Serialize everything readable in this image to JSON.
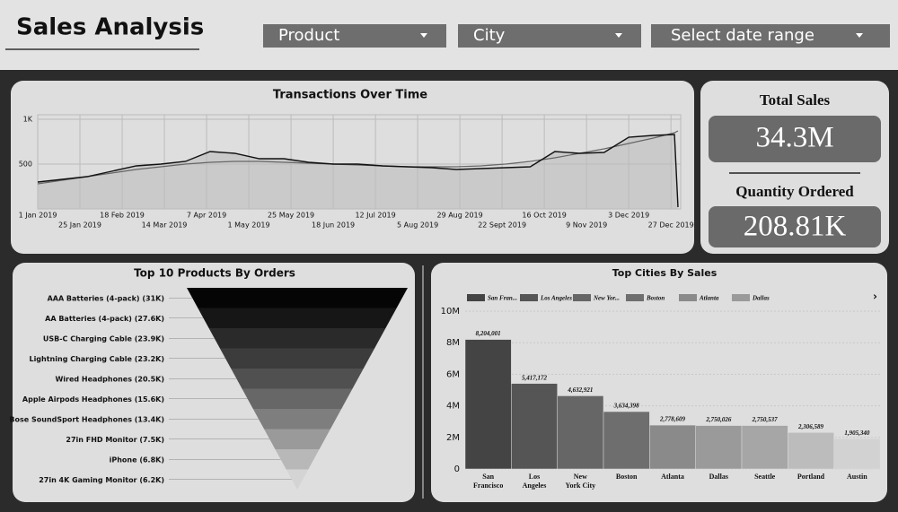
{
  "header": {
    "title": "Sales Analysis",
    "filters": [
      "Product",
      "City",
      "Select date range"
    ]
  },
  "kpis": [
    {
      "label": "Total Sales",
      "value": "34.3M"
    },
    {
      "label": "Quantity Ordered",
      "value": "208.81K"
    }
  ],
  "chart_data": [
    {
      "type": "line",
      "title": "Transactions Over Time",
      "color": "#111111",
      "trend_color": "#666666",
      "grid": true,
      "x": [
        "2019-01-01",
        "2019-01-15",
        "2019-01-29",
        "2019-02-12",
        "2019-02-26",
        "2019-03-12",
        "2019-03-26",
        "2019-04-09",
        "2019-04-23",
        "2019-05-07",
        "2019-05-21",
        "2019-06-04",
        "2019-06-18",
        "2019-07-02",
        "2019-07-16",
        "2019-07-30",
        "2019-08-13",
        "2019-08-27",
        "2019-09-10",
        "2019-09-24",
        "2019-10-08",
        "2019-10-22",
        "2019-11-05",
        "2019-11-19",
        "2019-12-03",
        "2019-12-17",
        "2019-12-29",
        "2019-12-31"
      ],
      "values": [
        300,
        330,
        360,
        420,
        480,
        500,
        530,
        640,
        620,
        560,
        560,
        520,
        500,
        500,
        480,
        470,
        460,
        440,
        450,
        460,
        470,
        640,
        620,
        630,
        800,
        820,
        830,
        20
      ],
      "trend_values": [
        280,
        320,
        360,
        400,
        440,
        470,
        500,
        520,
        530,
        530,
        520,
        510,
        500,
        490,
        480,
        470,
        470,
        470,
        480,
        500,
        530,
        570,
        620,
        670,
        730,
        790,
        850,
        870
      ],
      "xlim": [
        "2019-01-01",
        "2019-12-31"
      ],
      "xticks": [
        {
          "value": "2019-01-01",
          "label": "1 Jan 2019"
        },
        {
          "value": "2019-01-25",
          "label": "25 Jan 2019"
        },
        {
          "value": "2019-02-18",
          "label": "18 Feb 2019"
        },
        {
          "value": "2019-03-14",
          "label": "14 Mar 2019"
        },
        {
          "value": "2019-04-07",
          "label": "7 Apr 2019"
        },
        {
          "value": "2019-05-01",
          "label": "1 May 2019"
        },
        {
          "value": "2019-05-25",
          "label": "25 May 2019"
        },
        {
          "value": "2019-06-18",
          "label": "18 Jun 2019"
        },
        {
          "value": "2019-07-12",
          "label": "12 Jul 2019"
        },
        {
          "value": "2019-08-05",
          "label": "5 Aug 2019"
        },
        {
          "value": "2019-08-29",
          "label": "29 Aug 2019"
        },
        {
          "value": "2019-09-22",
          "label": "22 Sept 2019"
        },
        {
          "value": "2019-10-16",
          "label": "16 Oct 2019"
        },
        {
          "value": "2019-11-09",
          "label": "9 Nov 2019"
        },
        {
          "value": "2019-12-03",
          "label": "3 Dec 2019"
        },
        {
          "value": "2019-12-27",
          "label": "27 Dec 2019"
        }
      ],
      "ylim": [
        0,
        1000
      ],
      "yticks": [
        500,
        {
          "value": 1000,
          "label": "1K"
        }
      ]
    },
    {
      "type": "funnel",
      "title": "Top 10 Products By Orders",
      "categories": [
        "AAA Batteries (4-pack)",
        "AA Batteries (4-pack)",
        "USB-C Charging Cable",
        "Lightning Charging Cable",
        "Wired Headphones",
        "Apple Airpods Headphones",
        "Bose SoundSport Headphones",
        "27in FHD Monitor",
        "iPhone",
        "27in 4K Gaming Monitor"
      ],
      "values": [
        31000,
        27600,
        23900,
        23200,
        20500,
        15600,
        13400,
        7500,
        6800,
        6200
      ],
      "value_labels": [
        "(31K)",
        "(27.6K)",
        "(23.9K)",
        "(23.2K)",
        "(20.5K)",
        "(15.6K)",
        "(13.4K)",
        "(7.5K)",
        "(6.8K)",
        "(6.2K)"
      ],
      "colors": [
        "#050505",
        "#161616",
        "#2a2a2a",
        "#3c3c3c",
        "#505050",
        "#676767",
        "#7e7e7e",
        "#9a9a9a",
        "#b8b8b8",
        "#d4d4d4"
      ]
    },
    {
      "type": "bar",
      "title": "Top Cities By Sales",
      "categories": [
        "San Francisco",
        "Los Angeles",
        "New York City",
        "Boston",
        "Atlanta",
        "Dallas",
        "Seattle",
        "Portland",
        "Austin"
      ],
      "values": [
        8204001,
        5417172,
        4632921,
        3634398,
        2778609,
        2750026,
        2750537,
        2306589,
        1905340
      ],
      "value_labels": [
        "8,204,001",
        "5,417,172",
        "4,632,921",
        "3,634,398",
        "2,778,609",
        "2,750,026",
        "2,750,537",
        "2,306,589",
        "1,905,340"
      ],
      "colors": [
        "#444444",
        "#555555",
        "#666666",
        "#6e6e6e",
        "#8a8a8a",
        "#9a9a9a",
        "#a6a6a6",
        "#bcbcbc",
        "#d2d2d2"
      ],
      "legend": [
        {
          "label": "San Fran...",
          "color": "#444444"
        },
        {
          "label": "Los Angeles",
          "color": "#555555"
        },
        {
          "label": "New Yor...",
          "color": "#666666"
        },
        {
          "label": "Boston",
          "color": "#6e6e6e"
        },
        {
          "label": "Atlanta",
          "color": "#8a8a8a"
        },
        {
          "label": "Dallas",
          "color": "#9a9a9a"
        }
      ],
      "ylim": [
        0,
        10000000
      ],
      "yticks": [
        0,
        {
          "value": 2000000,
          "label": "2M"
        },
        {
          "value": 4000000,
          "label": "4M"
        },
        {
          "value": 6000000,
          "label": "6M"
        },
        {
          "value": 8000000,
          "label": "8M"
        },
        {
          "value": 10000000,
          "label": "10M"
        }
      ],
      "grid": true
    }
  ]
}
